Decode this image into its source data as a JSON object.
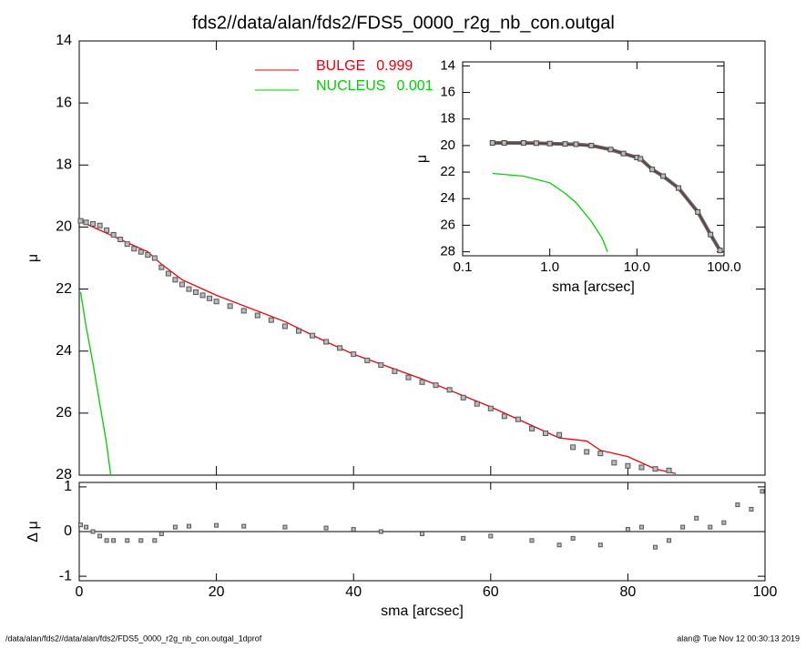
{
  "title": "fds2//data/alan/fds2/FDS5_0000_r2g_nb_con.outgal",
  "footer": {
    "left": "/data/alan/fds2//data/alan/fds2/FDS5_0000_r2g_nb_con.outgal_1dprof",
    "right": "alan@  Tue Nov 12 00:30:13 2019"
  },
  "chart_data": [
    {
      "type": "scatter",
      "ylabel": "μ",
      "xlim": [
        0,
        100
      ],
      "xticks": [
        0,
        20,
        40,
        60,
        80,
        100
      ],
      "ylim": [
        28,
        14
      ],
      "yticks": [
        14,
        16,
        18,
        20,
        22,
        24,
        26,
        28
      ],
      "points": {
        "color": "#555555",
        "x": [
          0.2,
          1,
          2,
          3,
          4,
          5,
          6,
          7,
          8,
          9,
          10,
          11,
          12,
          13,
          14,
          15,
          16,
          17,
          18,
          19,
          20,
          22,
          24,
          26,
          28,
          30,
          32,
          34,
          36,
          38,
          40,
          42,
          44,
          46,
          48,
          50,
          52,
          54,
          56,
          58,
          60,
          62,
          64,
          66,
          68,
          70,
          72,
          74,
          76,
          78,
          80,
          82,
          84,
          86
        ],
        "values": [
          19.8,
          19.85,
          19.9,
          19.95,
          20.1,
          20.25,
          20.4,
          20.55,
          20.7,
          20.8,
          20.9,
          21.0,
          21.3,
          21.5,
          21.7,
          21.85,
          22.0,
          22.1,
          22.2,
          22.3,
          22.4,
          22.55,
          22.7,
          22.85,
          23.0,
          23.2,
          23.35,
          23.5,
          23.7,
          23.9,
          24.1,
          24.3,
          24.45,
          24.65,
          24.85,
          25.0,
          25.1,
          25.25,
          25.5,
          25.7,
          25.85,
          26.1,
          26.2,
          26.5,
          26.65,
          26.7,
          27.1,
          27.25,
          27.3,
          27.6,
          27.7,
          27.75,
          27.8,
          27.85
        ]
      },
      "series": [
        {
          "name": "BULGE",
          "fraction": 0.999,
          "color": "#e8000b",
          "x": [
            0,
            2,
            5,
            10,
            12,
            15,
            20,
            30,
            36,
            40,
            50,
            60,
            66,
            70,
            74,
            76,
            80,
            84,
            87
          ],
          "values": [
            19.8,
            20.0,
            20.3,
            20.8,
            21.2,
            21.7,
            22.2,
            23.05,
            23.7,
            24.1,
            24.9,
            25.8,
            26.4,
            26.8,
            26.9,
            27.2,
            27.4,
            27.8,
            27.95
          ]
        },
        {
          "name": "NUCLEUS",
          "fraction": 0.001,
          "color": "#00d000",
          "x": [
            0.2,
            1,
            2,
            3,
            4,
            4.6
          ],
          "values": [
            22.1,
            23.2,
            24.4,
            25.7,
            27.0,
            28.0
          ]
        }
      ]
    },
    {
      "type": "residual",
      "ylabel": "Δ μ",
      "xlabel": "sma [arcsec]",
      "xlim": [
        0,
        100
      ],
      "xticks": [
        0,
        20,
        40,
        60,
        80,
        100
      ],
      "ylim": [
        -1.1,
        1.1
      ],
      "yticks": [
        -1,
        0,
        1
      ],
      "color": "#555555",
      "x": [
        0.2,
        1,
        2,
        3,
        4,
        5,
        7,
        9,
        11,
        12,
        14,
        16,
        20,
        24,
        30,
        36,
        40,
        44,
        50,
        56,
        60,
        66,
        70,
        72,
        76,
        80,
        82,
        84,
        86,
        88,
        90,
        92,
        94,
        96,
        98,
        99.6
      ],
      "values": [
        0.15,
        0.1,
        0,
        -0.1,
        -0.2,
        -0.2,
        -0.2,
        -0.2,
        -0.2,
        -0.05,
        0.1,
        0.12,
        0.14,
        0.12,
        0.1,
        0.08,
        0.05,
        0,
        -0.05,
        -0.15,
        -0.1,
        -0.2,
        -0.3,
        -0.15,
        -0.3,
        0.05,
        0.1,
        -0.35,
        -0.2,
        0.1,
        0.3,
        0.1,
        0.2,
        0.6,
        0.5,
        0.9
      ]
    },
    {
      "type": "scatter",
      "ylabel": "μ",
      "xlabel": "sma [arcsec]",
      "xscale": "log",
      "xlim": [
        0.1,
        100
      ],
      "xticks": [
        0.1,
        {
          "value": 1,
          "label": "1.0"
        },
        {
          "value": 10,
          "label": "10.0"
        },
        {
          "value": 100,
          "label": "100.0"
        }
      ],
      "ylim": [
        28.3,
        13.7
      ],
      "yticks": [
        14,
        16,
        18,
        20,
        22,
        24,
        26,
        28
      ],
      "points": {
        "color": "#444444",
        "x": [
          0.22,
          0.3,
          0.5,
          0.7,
          1,
          1.5,
          2,
          3,
          5,
          7,
          10,
          11,
          15,
          20,
          30,
          50,
          70,
          90
        ],
        "values": [
          19.8,
          19.8,
          19.8,
          19.82,
          19.85,
          19.88,
          19.9,
          20.0,
          20.3,
          20.6,
          20.9,
          21.0,
          21.8,
          22.3,
          23.2,
          25.0,
          26.7,
          27.9
        ]
      },
      "series": [
        {
          "color": "#e8000b",
          "x": [
            0.22,
            1,
            3,
            5,
            10,
            11,
            15,
            20,
            30,
            50,
            70,
            90
          ],
          "values": [
            19.8,
            19.85,
            20.0,
            20.3,
            20.9,
            21.0,
            21.8,
            22.3,
            23.2,
            25.0,
            26.7,
            27.9
          ]
        },
        {
          "color": "#00d000",
          "x": [
            0.22,
            0.5,
            1,
            1.5,
            2,
            3,
            4,
            4.6
          ],
          "values": [
            22.1,
            22.3,
            22.8,
            23.6,
            24.3,
            25.7,
            27.0,
            28.0
          ]
        }
      ]
    }
  ]
}
